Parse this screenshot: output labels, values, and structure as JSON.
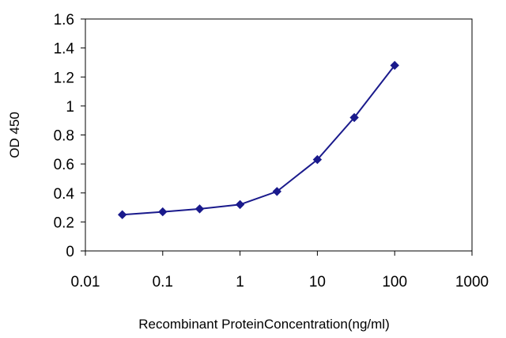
{
  "chart_data": {
    "type": "line",
    "title": "",
    "xlabel": "Recombinant ProteinConcentration(ng/ml)",
    "ylabel": "OD 450",
    "x_scale": "log",
    "xlim": [
      0.01,
      1000
    ],
    "ylim": [
      0,
      1.6
    ],
    "x_ticks": [
      0.01,
      0.1,
      1,
      10,
      100,
      1000
    ],
    "x_tick_labels": [
      "0.01",
      "0.1",
      "1",
      "10",
      "100",
      "1000"
    ],
    "y_ticks": [
      0,
      0.2,
      0.4,
      0.6,
      0.8,
      1,
      1.2,
      1.4,
      1.6
    ],
    "y_tick_labels": [
      "0",
      "0.2",
      "0.4",
      "0.6",
      "0.8",
      "1",
      "1.2",
      "1.4",
      "1.6"
    ],
    "grid": false,
    "legend": "none",
    "series": [
      {
        "color": "#1a1a8c",
        "marker": "diamond",
        "x": [
          0.03,
          0.1,
          0.3,
          1,
          3,
          10,
          30,
          100
        ],
        "y": [
          0.25,
          0.27,
          0.29,
          0.32,
          0.41,
          0.63,
          0.92,
          1.28
        ]
      }
    ],
    "plot_border_color": "#000000"
  }
}
